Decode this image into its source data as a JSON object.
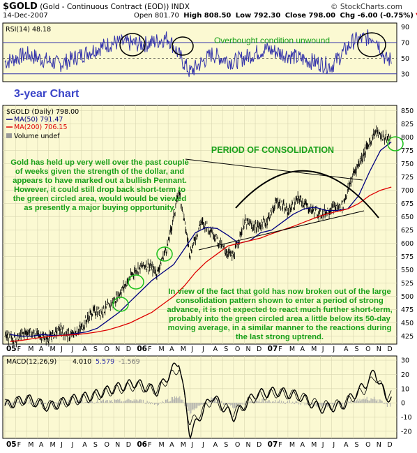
{
  "header": {
    "symbol": "$GOLD",
    "description": "(Gold - Continuous Contract (EOD))",
    "exchange": "INDX",
    "date": "14-Dec-2007",
    "open": "Open 801.70",
    "high": "High 808.50",
    "low": "Low 792.30",
    "close": "Close 798.00",
    "change": "Chg -6.00 (-0.75%)",
    "change_arrow": "▼",
    "brand": "© StockCharts.com"
  },
  "colors": {
    "panel_bg": "#fbf9d2",
    "price": "#000000",
    "ma50": "#000080",
    "ma200": "#dd0000",
    "annotation": "#19a019",
    "rsi_line": "#3333aa",
    "volume": "#999999",
    "histogram": "#a9a9a9"
  },
  "chart_data": [
    {
      "type": "line",
      "panel": "rsi",
      "legend": "RSI(14) 48.18",
      "y_ticks": [
        "90",
        "70",
        "50",
        "30"
      ],
      "ylim": [
        20,
        95
      ],
      "reference_levels": [
        70,
        30
      ],
      "series": [
        {
          "name": "RSI(14)",
          "x": [
            "2005-01",
            "2005-03",
            "2005-06",
            "2005-09",
            "2005-11",
            "2006-02",
            "2006-04",
            "2006-06",
            "2006-08",
            "2006-10",
            "2007-01",
            "2007-04",
            "2007-07",
            "2007-09",
            "2007-11",
            "2007-12"
          ],
          "values": [
            45,
            55,
            42,
            60,
            70,
            68,
            76,
            32,
            55,
            45,
            62,
            50,
            40,
            72,
            78,
            48.18
          ]
        }
      ],
      "annotation": "Overbought condition unwound"
    },
    {
      "type": "line",
      "panel": "price",
      "title": "3-year Chart",
      "legend": [
        "$GOLD (Daily) 798.00",
        "MA(50) 791.47",
        "MA(200) 706.15",
        "Volume undef"
      ],
      "y_ticks": [
        "850",
        "825",
        "800",
        "775",
        "750",
        "725",
        "700",
        "675",
        "650",
        "625",
        "600",
        "575",
        "550",
        "525",
        "500",
        "475",
        "450",
        "425"
      ],
      "ylim": [
        410,
        860
      ],
      "x_ticks": [
        "05",
        "F",
        "M",
        "A",
        "M",
        "J",
        "J",
        "A",
        "S",
        "O",
        "N",
        "D",
        "06",
        "F",
        "M",
        "A",
        "M",
        "J",
        "J",
        "A",
        "S",
        "O",
        "N",
        "D",
        "07",
        "F",
        "M",
        "A",
        "M",
        "J",
        "J",
        "A",
        "S",
        "O",
        "N",
        "D"
      ],
      "series": [
        {
          "name": "$GOLD (Daily)",
          "x": [
            "2005-01",
            "2005-02",
            "2005-03",
            "2005-04",
            "2005-05",
            "2005-06",
            "2005-07",
            "2005-08",
            "2005-09",
            "2005-10",
            "2005-11",
            "2005-12",
            "2006-01",
            "2006-02",
            "2006-03",
            "2006-04",
            "2006-05",
            "2006-06",
            "2006-07",
            "2006-08",
            "2006-09",
            "2006-10",
            "2006-11",
            "2006-12",
            "2007-01",
            "2007-02",
            "2007-03",
            "2007-04",
            "2007-05",
            "2007-06",
            "2007-07",
            "2007-08",
            "2007-09",
            "2007-10",
            "2007-11",
            "2007-12"
          ],
          "values": [
            425,
            420,
            433,
            428,
            420,
            437,
            425,
            440,
            470,
            473,
            490,
            520,
            550,
            560,
            545,
            600,
            700,
            580,
            640,
            625,
            590,
            575,
            640,
            630,
            640,
            680,
            660,
            685,
            665,
            655,
            665,
            670,
            730,
            770,
            810,
            798
          ]
        },
        {
          "name": "MA(50)",
          "values": [
            428,
            425,
            425,
            428,
            426,
            427,
            430,
            433,
            440,
            455,
            470,
            490,
            510,
            530,
            545,
            560,
            590,
            620,
            630,
            628,
            615,
            600,
            605,
            620,
            625,
            640,
            655,
            665,
            668,
            662,
            662,
            665,
            690,
            735,
            775,
            791
          ]
        },
        {
          "name": "MA(200)",
          "values": [
            415,
            417,
            420,
            423,
            425,
            427,
            428,
            430,
            433,
            437,
            443,
            450,
            460,
            470,
            485,
            500,
            520,
            545,
            565,
            580,
            595,
            600,
            605,
            610,
            618,
            625,
            632,
            640,
            648,
            655,
            660,
            665,
            675,
            690,
            700,
            706
          ]
        }
      ],
      "annotations": [
        "PERIOD OF CONSOLIDATION",
        "Gold has held up very well over the past couple of weeks given the strength of the dollar, and appears to have marked out a bullish Pennant. However, it could still drop back short-term to the green circled area, would would be viewed as presently a major buying opportunity.",
        "In view of the fact that gold has now broken out of the large consolidation pattern shown to enter a period of strong advance, it is not expected to react much further short-term, probably into the green circled area a little below its 50-day moving average, in a similar manner to the reactions during the last strong uptrend."
      ]
    },
    {
      "type": "line",
      "panel": "macd",
      "legend": [
        "MACD(12,26,9)",
        "4.010",
        "5.579",
        "-1.569"
      ],
      "y_ticks": [
        "30",
        "20",
        "10",
        "0",
        "-10",
        "-20"
      ],
      "ylim": [
        -25,
        33
      ],
      "series": [
        {
          "name": "MACD",
          "x": [
            "2005-01",
            "2005-03",
            "2005-05",
            "2005-07",
            "2005-09",
            "2005-11",
            "2006-01",
            "2006-03",
            "2006-05",
            "2006-06",
            "2006-08",
            "2006-10",
            "2006-12",
            "2007-02",
            "2007-04",
            "2007-06",
            "2007-08",
            "2007-10",
            "2007-11",
            "2007-12"
          ],
          "values": [
            -2,
            3,
            -3,
            2,
            5,
            10,
            14,
            8,
            30,
            -22,
            5,
            -10,
            6,
            8,
            5,
            -4,
            -2,
            12,
            22,
            4.01
          ]
        },
        {
          "name": "Signal",
          "values": [
            -1,
            2,
            -2,
            1,
            4,
            9,
            12,
            9,
            25,
            -15,
            2,
            -7,
            4,
            7,
            5,
            -2,
            -1,
            9,
            19,
            5.579
          ]
        },
        {
          "name": "Histogram",
          "values": [
            -1,
            1,
            -1,
            1,
            1,
            1,
            2,
            -1,
            5,
            -7,
            3,
            -3,
            2,
            1,
            0,
            -2,
            -1,
            3,
            3,
            -1.569
          ]
        }
      ]
    }
  ]
}
